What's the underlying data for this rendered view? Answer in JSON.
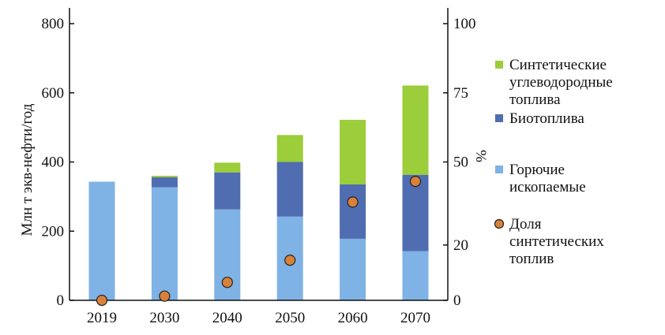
{
  "chart_data": {
    "type": "bar",
    "stacked": true,
    "categories": [
      "2019",
      "2030",
      "2040",
      "2050",
      "2060",
      "2070"
    ],
    "series": [
      {
        "name": "Горючие ископаемые",
        "color": "#7fb2e5",
        "values": [
          343,
          327,
          263,
          242,
          178,
          142
        ]
      },
      {
        "name": "Биотоплива",
        "color": "#4f6db0",
        "values": [
          0,
          29,
          107,
          158,
          157,
          221
        ]
      },
      {
        "name": "Синтетические углеводородные топлива",
        "color": "#9ccd3a",
        "values": [
          0,
          4,
          28,
          78,
          187,
          258
        ]
      }
    ],
    "share_series": {
      "name": "Доля синтетических топлив",
      "axis": "right",
      "color": "#d9813a",
      "values": [
        0,
        1.5,
        6.5,
        14.5,
        35.5,
        43
      ]
    },
    "ylabel": "Млн т экв-нефти/год",
    "y2label": "%",
    "ylim": [
      0,
      800
    ],
    "y2lim": [
      0,
      100
    ],
    "yticks": [
      "0",
      "200",
      "400",
      "600",
      "800"
    ],
    "y2ticks": [
      "0",
      "20",
      "50",
      "75",
      "100"
    ],
    "legend": {
      "position": "right",
      "entries": [
        {
          "lines": [
            "Синтетические",
            "углеводородные",
            "топлива"
          ],
          "color": "#9ccd3a",
          "marker": "square"
        },
        {
          "lines": [
            "Биотоплива"
          ],
          "color": "#4f6db0",
          "marker": "square"
        },
        {
          "lines": [
            "Горючие",
            "ископаемые"
          ],
          "color": "#7fb2e5",
          "marker": "square"
        },
        {
          "lines": [
            "Доля",
            "синтетических",
            "топлив"
          ],
          "color": "#d9813a",
          "marker": "circle"
        }
      ]
    },
    "grid": false
  }
}
